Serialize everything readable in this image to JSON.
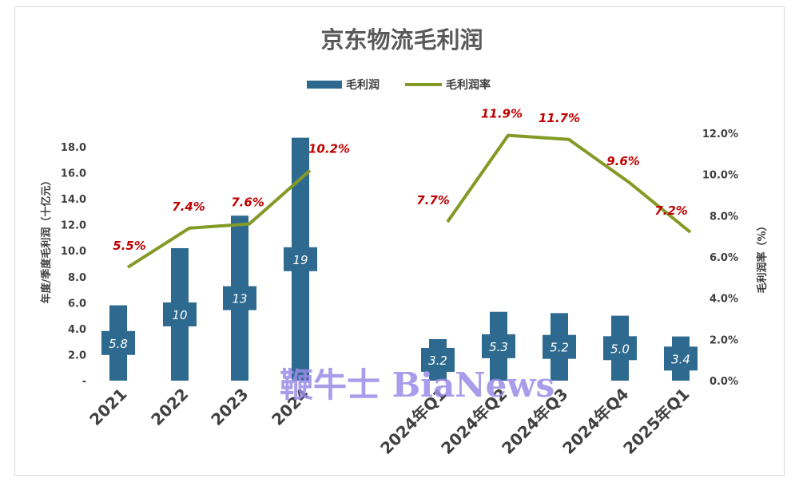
{
  "chart_data": {
    "type": "bar",
    "title": "京东物流毛利润",
    "ylabel": "年度/季度毛利润（十亿元）",
    "ylabel_right": "毛利润率（%）",
    "ylim": [
      0,
      18.0
    ],
    "ylim_right": [
      0,
      12.0
    ],
    "yticks_left": [
      "-",
      "2.0",
      "4.0",
      "6.0",
      "8.0",
      "10.0",
      "12.0",
      "14.0",
      "16.0",
      "18.0"
    ],
    "yticks_right": [
      "0.0%",
      "2.0%",
      "4.0%",
      "6.0%",
      "8.0%",
      "10.0%",
      "12.0%"
    ],
    "categories": [
      "2021",
      "2022",
      "2023",
      "2024",
      "2024年Q1",
      "2024年Q2",
      "2024年Q3",
      "2024年Q4",
      "2025年Q1"
    ],
    "series": [
      {
        "name": "毛利润",
        "type": "bar",
        "color": "#2e6a8f",
        "values": [
          5.8,
          10.2,
          12.7,
          18.7,
          3.2,
          5.3,
          5.2,
          5.0,
          3.4
        ],
        "labels": [
          "5.8",
          "10",
          "13",
          "19",
          "3.2",
          "5.3",
          "5.2",
          "5.0",
          "3.4"
        ]
      },
      {
        "name": "毛利润率",
        "type": "line",
        "color": "#849a26",
        "values": [
          5.5,
          7.4,
          7.6,
          10.2,
          7.7,
          11.9,
          11.7,
          9.6,
          7.2
        ],
        "labels": [
          "5.5%",
          "7.4%",
          "7.6%",
          "10.2%",
          "7.7%",
          "11.9%",
          "11.7%",
          "9.6%",
          "7.2%"
        ]
      }
    ],
    "legend_position": "top-center",
    "grid": false
  },
  "watermark": "鞭牛士 BiaNews"
}
